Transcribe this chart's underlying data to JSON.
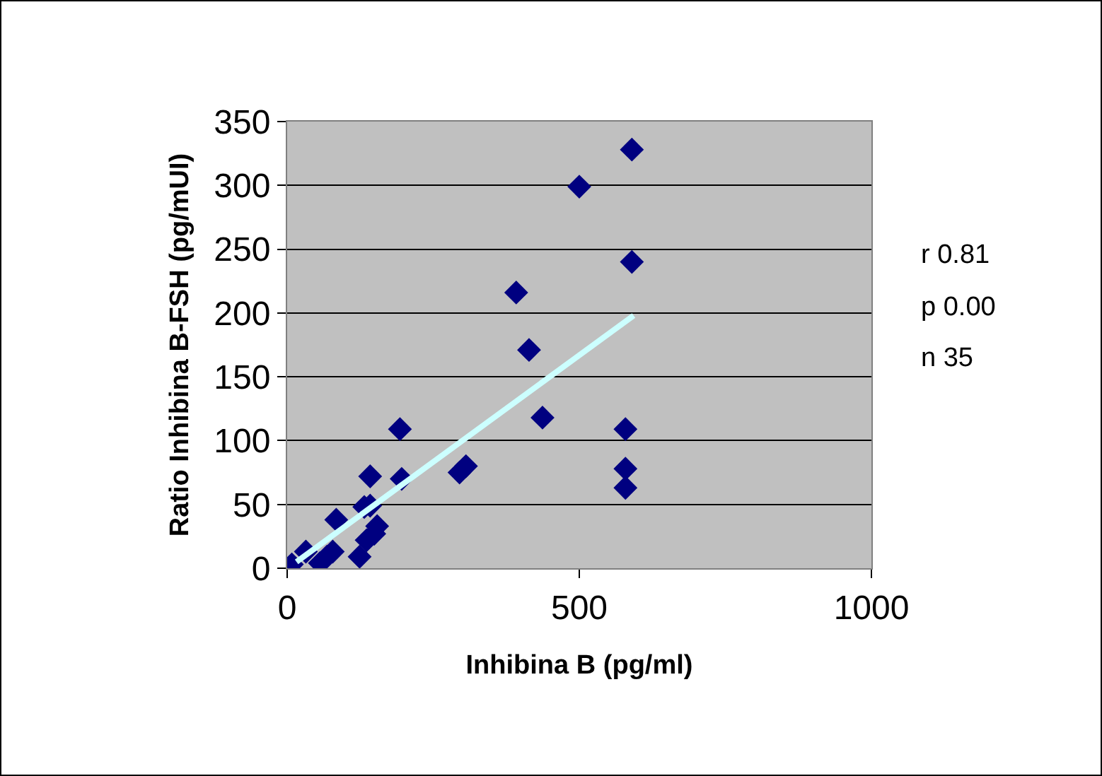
{
  "chart_data": {
    "type": "scatter",
    "xlabel": "Inhibina B (pg/ml)",
    "ylabel": "Ratio Inhibina B-FSH (pg/mUI)",
    "xlim": [
      0,
      1000
    ],
    "xticks": [
      0,
      500,
      1000
    ],
    "ylim": [
      0,
      350
    ],
    "yticks": [
      0,
      50,
      100,
      150,
      200,
      250,
      300,
      350
    ],
    "grid": "y",
    "series": [
      {
        "color": "#000080",
        "marker": "diamond",
        "x": [
          590,
          500,
          590,
          392,
          414,
          437,
          579,
          579,
          579,
          193,
          306,
          295,
          142,
          196,
          142,
          132,
          84,
          154,
          149,
          136,
          124,
          78,
          68,
          56,
          32,
          8
        ],
        "values": [
          328,
          299,
          240,
          216,
          171,
          118,
          109,
          78,
          63,
          109,
          80,
          75,
          72,
          70,
          49,
          48,
          38,
          33,
          27,
          22,
          9,
          13,
          9,
          4,
          13,
          3
        ]
      },
      {
        "type": "line",
        "color": "#ccffff",
        "x": [
          16,
          593
        ],
        "values": [
          5,
          198
        ]
      }
    ],
    "annotations": [
      "r 0.81",
      "p 0.00",
      "n 35"
    ]
  }
}
